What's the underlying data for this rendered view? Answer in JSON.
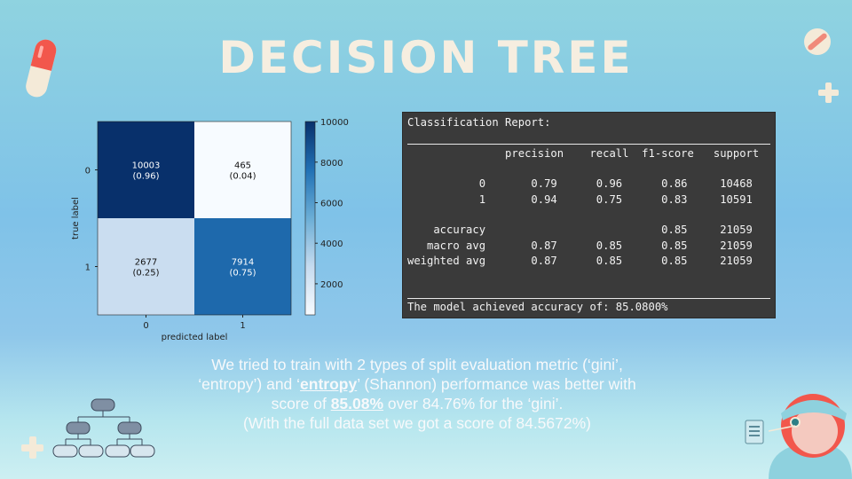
{
  "slide": {
    "title": "DECISION TREE"
  },
  "chart_data": {
    "type": "heatmap",
    "xlabel": "predicted label",
    "ylabel": "true label",
    "x_ticks": [
      "0",
      "1"
    ],
    "y_ticks": [
      "0",
      "1"
    ],
    "cells": [
      {
        "row": 0,
        "col": 0,
        "count": "10003",
        "ratio": "(0.96)",
        "value": 10003
      },
      {
        "row": 0,
        "col": 1,
        "count": "465",
        "ratio": "(0.04)",
        "value": 465
      },
      {
        "row": 1,
        "col": 0,
        "count": "2677",
        "ratio": "(0.25)",
        "value": 2677
      },
      {
        "row": 1,
        "col": 1,
        "count": "7914",
        "ratio": "(0.75)",
        "value": 7914
      }
    ],
    "colorbar": {
      "ticks": [
        "10000",
        "8000",
        "6000",
        "4000",
        "2000"
      ],
      "range": [
        465,
        10003
      ],
      "colormap": "Blues"
    }
  },
  "report": {
    "heading": "Classification Report:",
    "header_row": "               precision    recall  f1-score   support",
    "rows": [
      "           0       0.79      0.96      0.86     10468",
      "           1       0.94      0.75      0.83     10591",
      "",
      "    accuracy                           0.85     21059",
      "   macro avg       0.87      0.85      0.85     21059",
      "weighted avg       0.87      0.85      0.85     21059"
    ],
    "footer": "The model achieved accuracy of: 85.0800%"
  },
  "caption": {
    "p1": "We tried to train with 2 types of split evaluation metric (‘gini’, ‘entropy’) and ‘",
    "bold1": "entropy",
    "p2": "’ (Shannon) performance was better with score of ",
    "bold2": "85.08%",
    "p3": " over 84.76% for the ‘gini’.",
    "p4": "(With the full data set we got a score of 84.5672%)"
  },
  "colors": {
    "title": "#f6eee0",
    "report_bg": "#3a3a3a",
    "cm_dark": "#08306b",
    "cm_light": "#f7fbff"
  }
}
